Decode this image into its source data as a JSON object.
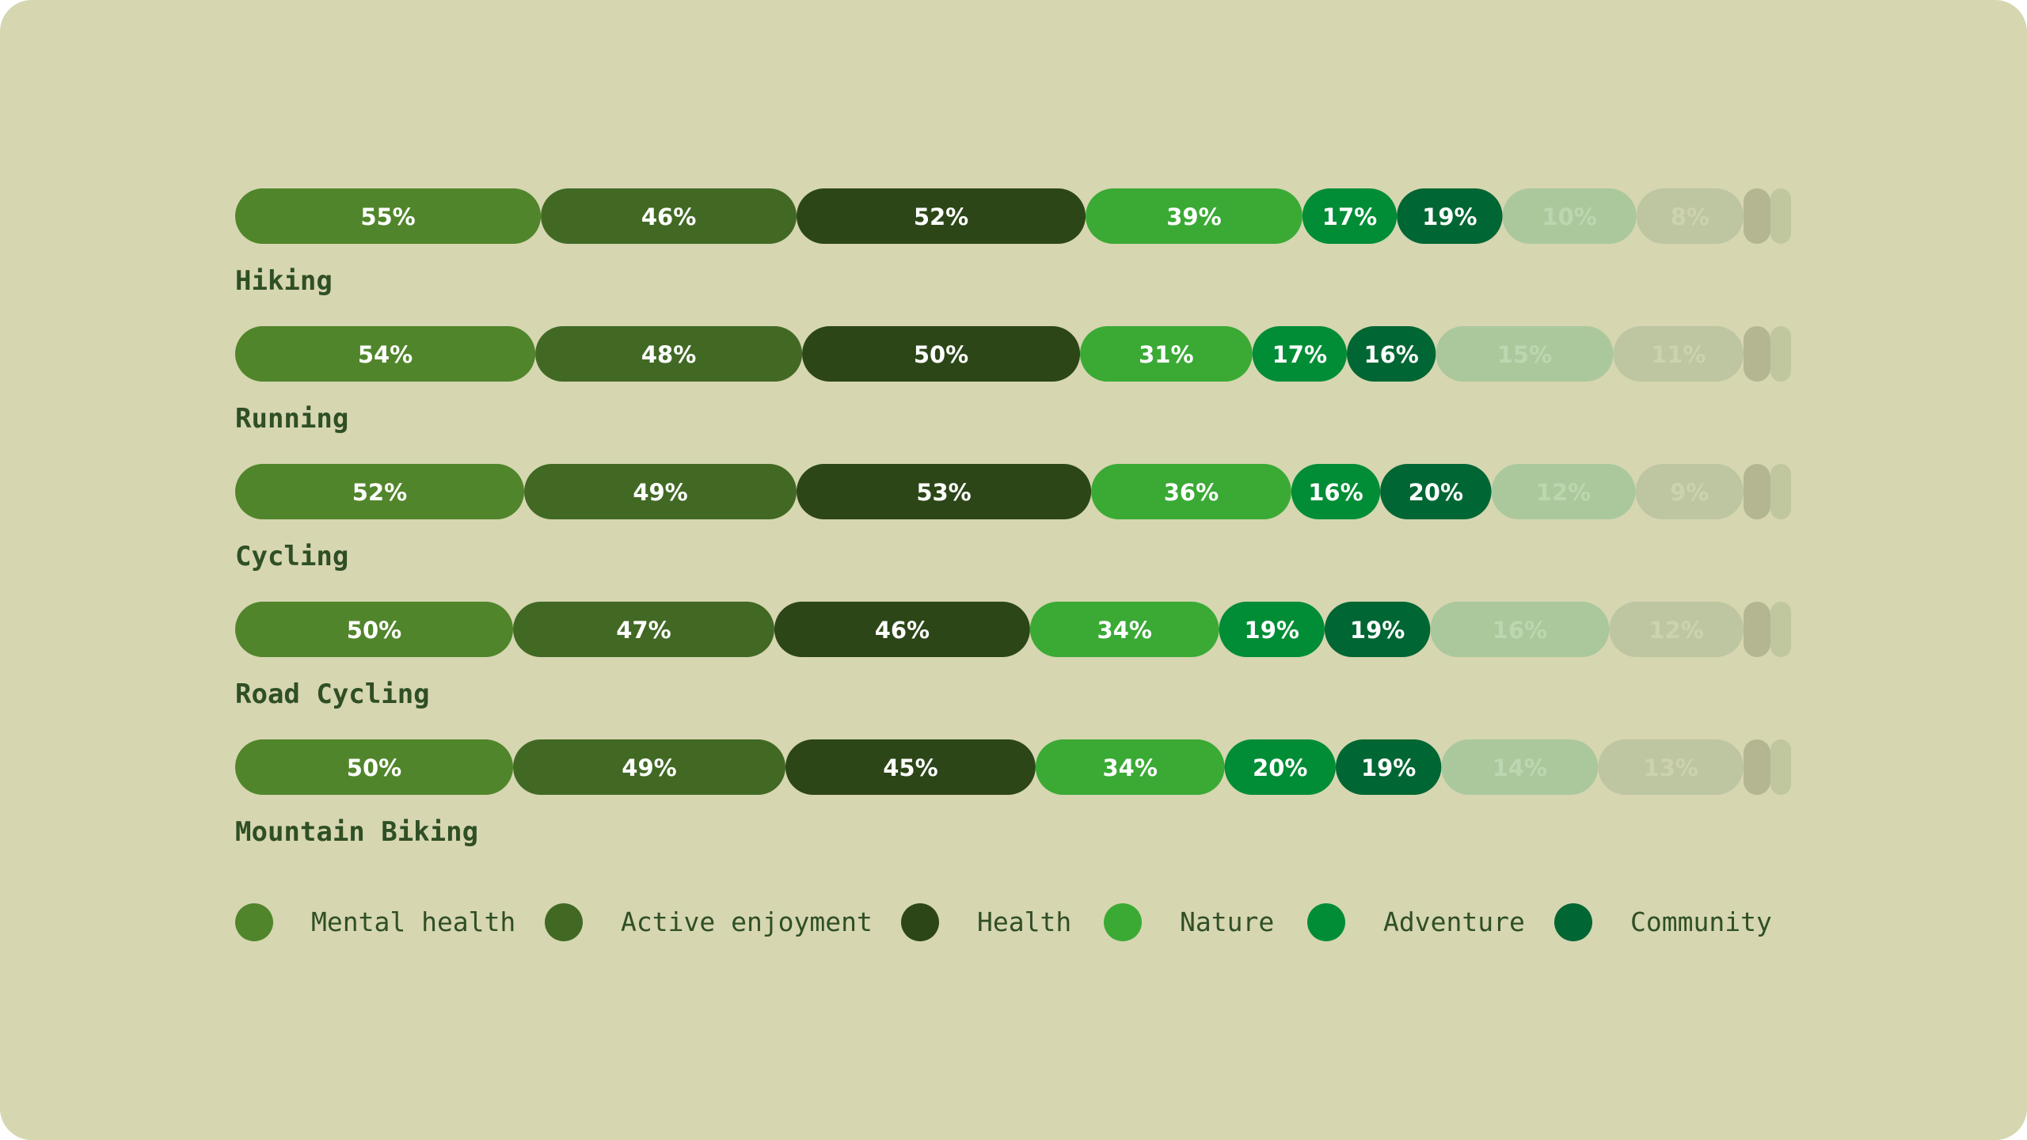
{
  "chart_data": {
    "type": "bar",
    "stacked": true,
    "orientation": "horizontal",
    "title": "",
    "xlabel": "",
    "ylabel": "",
    "legend_position": "bottom",
    "categories": [
      "Hiking",
      "Running",
      "Cycling",
      "Road Cycling",
      "Mountain Biking"
    ],
    "series": [
      {
        "name": "Mental health",
        "color": "#51852b",
        "values": [
          55,
          54,
          52,
          50,
          50
        ]
      },
      {
        "name": "Active enjoyment",
        "color": "#416924",
        "values": [
          46,
          48,
          49,
          47,
          49
        ]
      },
      {
        "name": "Health",
        "color": "#2c4618",
        "values": [
          52,
          50,
          53,
          46,
          45
        ]
      },
      {
        "name": "Nature",
        "color": "#3aaa35",
        "values": [
          39,
          31,
          36,
          34,
          34
        ]
      },
      {
        "name": "Adventure",
        "color": "#008d36",
        "values": [
          17,
          17,
          16,
          19,
          20
        ]
      },
      {
        "name": "Community",
        "color": "#006633",
        "values": [
          19,
          16,
          20,
          19,
          19
        ]
      }
    ],
    "faded_segments": {
      "values": [
        [
          10,
          8
        ],
        [
          15,
          11
        ],
        [
          12,
          9
        ],
        [
          16,
          12
        ],
        [
          14,
          13
        ]
      ],
      "colors": [
        "#aac89c",
        "#bdc5a1",
        "#b3b690",
        "#c0c79f"
      ]
    },
    "label_color": "#ffffff",
    "label_format": "{v}%"
  }
}
